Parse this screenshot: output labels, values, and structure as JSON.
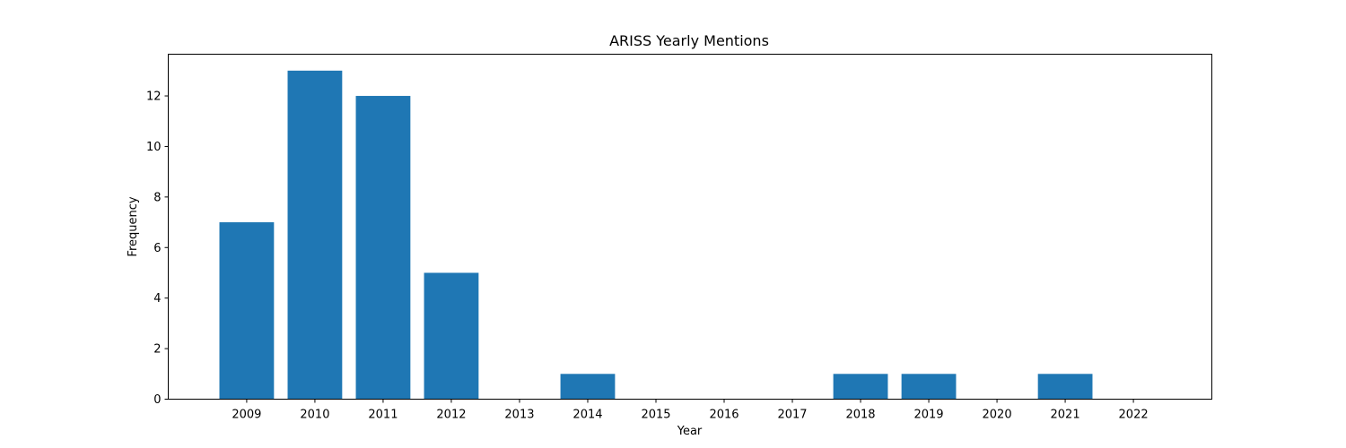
{
  "chart_data": {
    "type": "bar",
    "title": "ARISS Yearly Mentions",
    "xlabel": "Year",
    "ylabel": "Frequency",
    "categories": [
      "2009",
      "2010",
      "2011",
      "2012",
      "2013",
      "2014",
      "2015",
      "2016",
      "2017",
      "2018",
      "2019",
      "2020",
      "2021",
      "2022"
    ],
    "values": [
      7,
      13,
      12,
      5,
      0,
      1,
      0,
      0,
      0,
      1,
      1,
      0,
      1,
      0
    ],
    "ylim": [
      0,
      13.65
    ],
    "yticks": [
      0,
      2,
      4,
      6,
      8,
      10,
      12
    ],
    "grid": false,
    "bar_color": "#1f77b4"
  }
}
